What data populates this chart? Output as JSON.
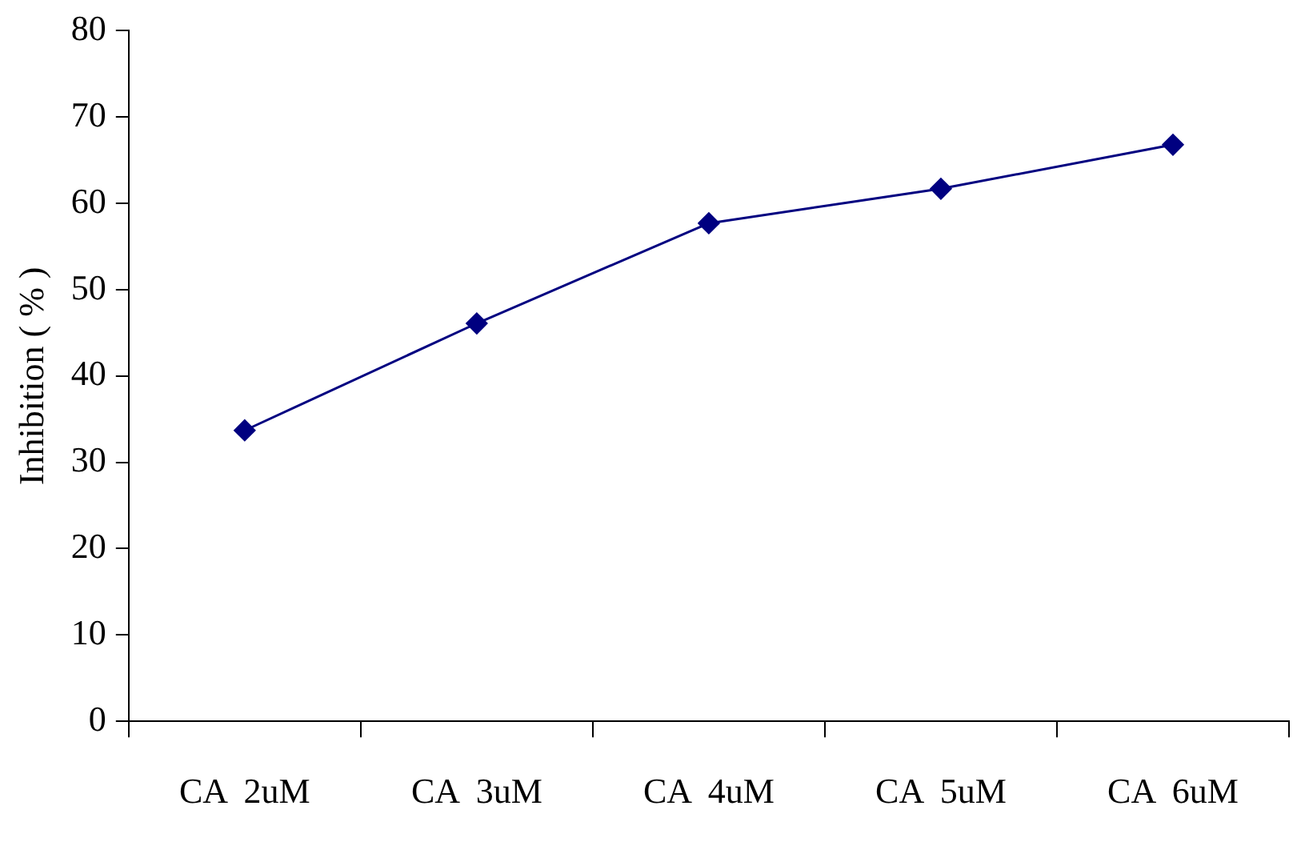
{
  "chart_data": {
    "type": "line",
    "ylabel": "Inhibition ( % )",
    "categories": [
      "CA  2uM",
      "CA  3uM",
      "CA  4uM",
      "CA  5uM",
      "CA  6uM"
    ],
    "series": [
      {
        "color": "#000080",
        "values": [
          33.7,
          46.1,
          57.7,
          61.7,
          66.8
        ]
      }
    ],
    "ylim": [
      0,
      80
    ],
    "yticks": [
      0,
      10,
      20,
      30,
      40,
      50,
      60,
      70,
      80
    ],
    "grid": false,
    "legend": false,
    "marker": "diamond",
    "line_style": "solid"
  }
}
